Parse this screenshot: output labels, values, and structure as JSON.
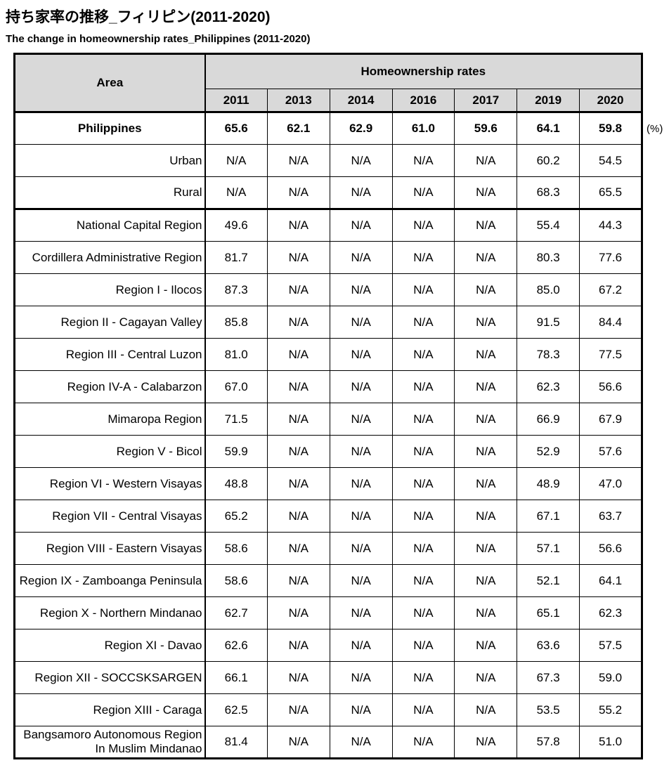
{
  "title": {
    "ja": "持ち家率の推移_フィリピン(2011-2020)",
    "en": "The change in homeownership rates_Philippines (2011-2020)"
  },
  "unit_note": "(%)",
  "colors": {
    "header_bg": "#d9d9d9",
    "border": "#000000",
    "text": "#000000"
  },
  "table": {
    "area_header": "Area",
    "group_header": "Homeownership rates",
    "years": [
      "2011",
      "2013",
      "2014",
      "2016",
      "2017",
      "2019",
      "2020"
    ],
    "rows": [
      {
        "area": "Philippines",
        "values": [
          "65.6",
          "62.1",
          "62.9",
          "61.0",
          "59.6",
          "64.1",
          "59.8"
        ],
        "emphasis": true,
        "section_end": false
      },
      {
        "area": "Urban",
        "values": [
          "N/A",
          "N/A",
          "N/A",
          "N/A",
          "N/A",
          "60.2",
          "54.5"
        ],
        "emphasis": false,
        "section_end": false
      },
      {
        "area": "Rural",
        "values": [
          "N/A",
          "N/A",
          "N/A",
          "N/A",
          "N/A",
          "68.3",
          "65.5"
        ],
        "emphasis": false,
        "section_end": true
      },
      {
        "area": "National Capital Region",
        "values": [
          "49.6",
          "N/A",
          "N/A",
          "N/A",
          "N/A",
          "55.4",
          "44.3"
        ],
        "emphasis": false,
        "section_end": false
      },
      {
        "area": "Cordillera Administrative Region",
        "values": [
          "81.7",
          "N/A",
          "N/A",
          "N/A",
          "N/A",
          "80.3",
          "77.6"
        ],
        "emphasis": false,
        "section_end": false
      },
      {
        "area": "Region I - Ilocos",
        "values": [
          "87.3",
          "N/A",
          "N/A",
          "N/A",
          "N/A",
          "85.0",
          "67.2"
        ],
        "emphasis": false,
        "section_end": false
      },
      {
        "area": "Region II - Cagayan Valley",
        "values": [
          "85.8",
          "N/A",
          "N/A",
          "N/A",
          "N/A",
          "91.5",
          "84.4"
        ],
        "emphasis": false,
        "section_end": false
      },
      {
        "area": "Region III - Central Luzon",
        "values": [
          "81.0",
          "N/A",
          "N/A",
          "N/A",
          "N/A",
          "78.3",
          "77.5"
        ],
        "emphasis": false,
        "section_end": false
      },
      {
        "area": "Region IV-A - Calabarzon",
        "values": [
          "67.0",
          "N/A",
          "N/A",
          "N/A",
          "N/A",
          "62.3",
          "56.6"
        ],
        "emphasis": false,
        "section_end": false
      },
      {
        "area": "Mimaropa Region",
        "values": [
          "71.5",
          "N/A",
          "N/A",
          "N/A",
          "N/A",
          "66.9",
          "67.9"
        ],
        "emphasis": false,
        "section_end": false
      },
      {
        "area": "Region V - Bicol",
        "values": [
          "59.9",
          "N/A",
          "N/A",
          "N/A",
          "N/A",
          "52.9",
          "57.6"
        ],
        "emphasis": false,
        "section_end": false
      },
      {
        "area": "Region VI - Western Visayas",
        "values": [
          "48.8",
          "N/A",
          "N/A",
          "N/A",
          "N/A",
          "48.9",
          "47.0"
        ],
        "emphasis": false,
        "section_end": false
      },
      {
        "area": "Region VII - Central Visayas",
        "values": [
          "65.2",
          "N/A",
          "N/A",
          "N/A",
          "N/A",
          "67.1",
          "63.7"
        ],
        "emphasis": false,
        "section_end": false
      },
      {
        "area": "Region VIII - Eastern Visayas",
        "values": [
          "58.6",
          "N/A",
          "N/A",
          "N/A",
          "N/A",
          "57.1",
          "56.6"
        ],
        "emphasis": false,
        "section_end": false
      },
      {
        "area": "Region IX - Zamboanga Peninsula",
        "values": [
          "58.6",
          "N/A",
          "N/A",
          "N/A",
          "N/A",
          "52.1",
          "64.1"
        ],
        "emphasis": false,
        "section_end": false
      },
      {
        "area": "Region X - Northern Mindanao",
        "values": [
          "62.7",
          "N/A",
          "N/A",
          "N/A",
          "N/A",
          "65.1",
          "62.3"
        ],
        "emphasis": false,
        "section_end": false
      },
      {
        "area": "Region XI - Davao",
        "values": [
          "62.6",
          "N/A",
          "N/A",
          "N/A",
          "N/A",
          "63.6",
          "57.5"
        ],
        "emphasis": false,
        "section_end": false
      },
      {
        "area": "Region XII - SOCCSKSARGEN",
        "values": [
          "66.1",
          "N/A",
          "N/A",
          "N/A",
          "N/A",
          "67.3",
          "59.0"
        ],
        "emphasis": false,
        "section_end": false
      },
      {
        "area": "Region XIII - Caraga",
        "values": [
          "62.5",
          "N/A",
          "N/A",
          "N/A",
          "N/A",
          "53.5",
          "55.2"
        ],
        "emphasis": false,
        "section_end": false
      },
      {
        "area": "Bangsamoro Autonomous Region In Muslim Mindanao",
        "values": [
          "81.4",
          "N/A",
          "N/A",
          "N/A",
          "N/A",
          "57.8",
          "51.0"
        ],
        "emphasis": false,
        "section_end": false
      }
    ]
  }
}
